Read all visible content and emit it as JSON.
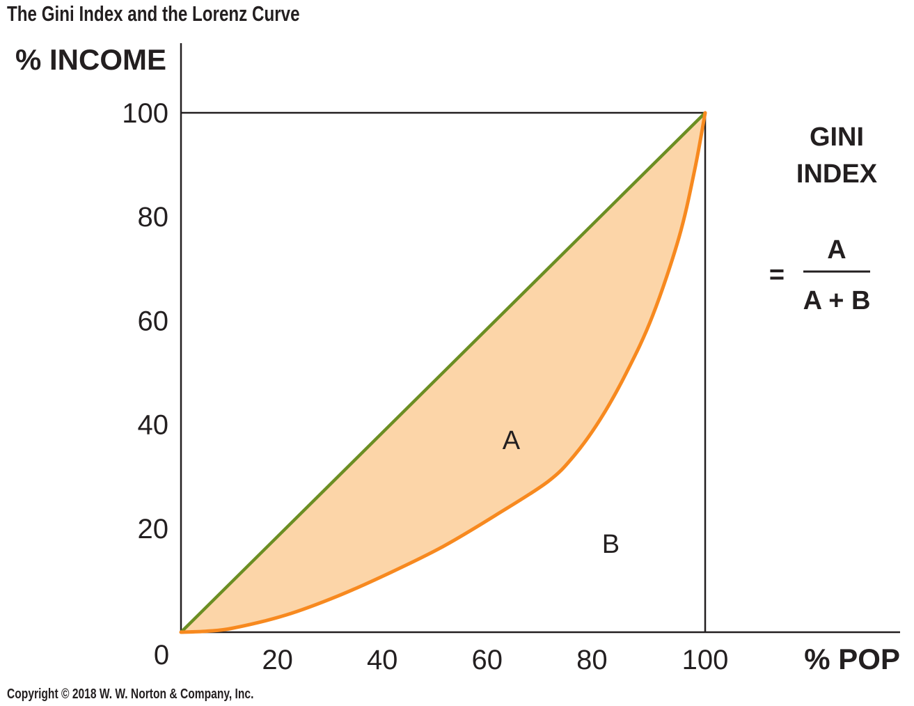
{
  "title": "The Gini Index and the Lorenz Curve",
  "copyright": "Copyright © 2018 W. W. Norton & Company, Inc.",
  "formula": {
    "heading_line1": "GINI",
    "heading_line2": "INDEX",
    "equals": "=",
    "numerator": "A",
    "denominator": "A + B"
  },
  "colors": {
    "equality_line": "#6b8e23",
    "lorenz_curve": "#f7891f",
    "area_a_fill": "#fcd5a8",
    "axes": "#231f20"
  },
  "chart_data": {
    "type": "line",
    "title": "The Gini Index and the Lorenz Curve",
    "xlabel": "% POP",
    "ylabel": "% INCOME",
    "xlim": [
      0,
      100
    ],
    "ylim": [
      0,
      100
    ],
    "origin_label": "0",
    "x_ticks": [
      20,
      40,
      60,
      80,
      100
    ],
    "y_ticks": [
      20,
      40,
      60,
      80,
      100
    ],
    "grid": false,
    "legend": "none",
    "series": [
      {
        "x": [
          0,
          100
        ],
        "y": [
          0,
          100
        ]
      },
      {
        "x": [
          0,
          5,
          10,
          20,
          30,
          40,
          50,
          60,
          70,
          75,
          80,
          85,
          90,
          95,
          98,
          100
        ],
        "y": [
          0,
          0.2,
          0.8,
          3.3,
          7.0,
          11.5,
          16.5,
          22.5,
          29.0,
          34.0,
          41.0,
          50.0,
          61.0,
          76.0,
          89.0,
          100
        ]
      }
    ],
    "annotations": [
      {
        "text": "A",
        "x": 63,
        "y": 37
      },
      {
        "text": "B",
        "x": 82,
        "y": 17
      }
    ]
  }
}
